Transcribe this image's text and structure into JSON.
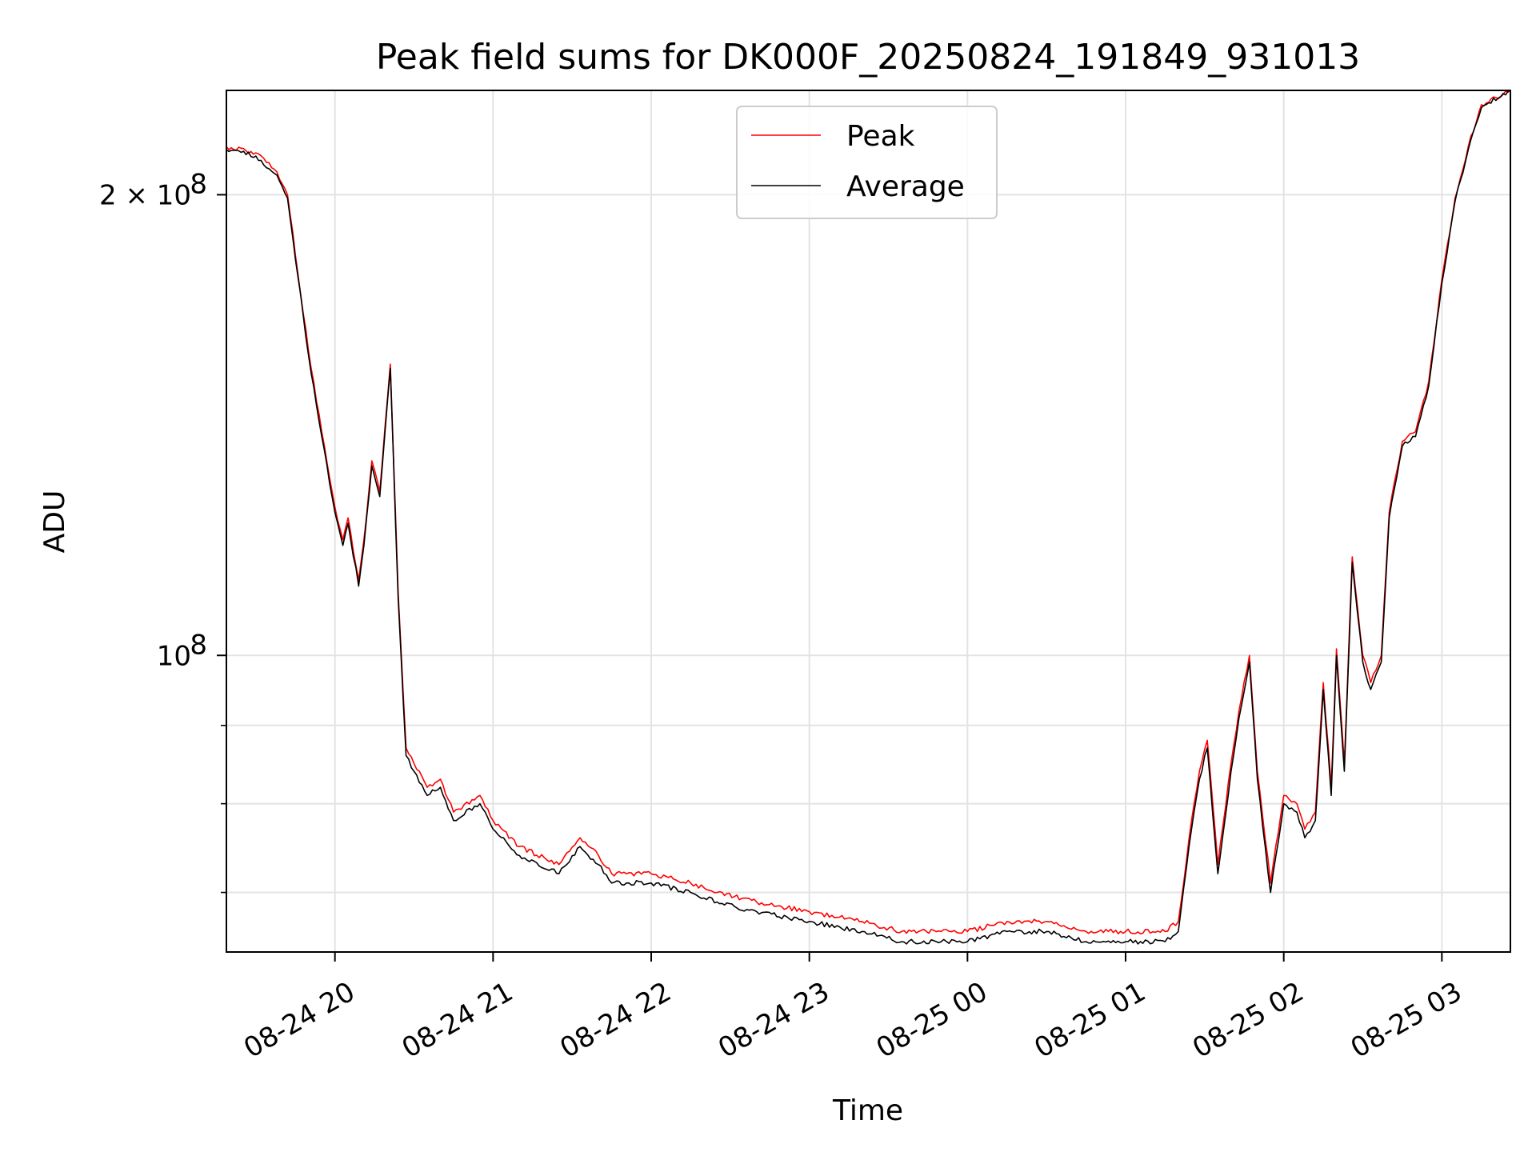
{
  "chart_data": {
    "type": "line",
    "title": "Peak field sums for DK000F_20250824_191849_931013",
    "xlabel": "Time",
    "ylabel": "ADU",
    "yscale": "log",
    "ylim": [
      64000000,
      234000000
    ],
    "xlim": [
      "2025-08-24 19:18:49",
      "2025-08-25 03:26:00"
    ],
    "x_ticks": [
      {
        "value": "2025-08-24 20:00",
        "label": "08-24 20"
      },
      {
        "value": "2025-08-24 21:00",
        "label": "08-24 21"
      },
      {
        "value": "2025-08-24 22:00",
        "label": "08-24 22"
      },
      {
        "value": "2025-08-24 23:00",
        "label": "08-24 23"
      },
      {
        "value": "2025-08-25 00:00",
        "label": "08-25 00"
      },
      {
        "value": "2025-08-25 01:00",
        "label": "08-25 01"
      },
      {
        "value": "2025-08-25 02:00",
        "label": "08-25 02"
      },
      {
        "value": "2025-08-25 03:00",
        "label": "08-25 03"
      }
    ],
    "y_ticks": [
      {
        "value": 100000000,
        "base": "10",
        "exp": "8"
      },
      {
        "value": 200000000,
        "base": "2 × 10",
        "exp": "8"
      }
    ],
    "y_minor_ticks": [
      70000000,
      80000000,
      90000000
    ],
    "grid": true,
    "legend_position": "top-center",
    "series": [
      {
        "name": "Peak",
        "color": "#ff0000",
        "x": [
          "2025-08-24 19:18:49",
          "2025-08-24 19:30",
          "2025-08-24 19:38",
          "2025-08-24 19:42",
          "2025-08-24 19:50",
          "2025-08-24 19:55",
          "2025-08-24 20:00",
          "2025-08-24 20:03",
          "2025-08-24 20:05",
          "2025-08-24 20:09",
          "2025-08-24 20:11",
          "2025-08-24 20:14",
          "2025-08-24 20:17",
          "2025-08-24 20:21",
          "2025-08-24 20:24",
          "2025-08-24 20:27",
          "2025-08-24 20:30",
          "2025-08-24 20:35",
          "2025-08-24 20:40",
          "2025-08-24 20:45",
          "2025-08-24 20:55",
          "2025-08-24 21:00",
          "2025-08-24 21:10",
          "2025-08-24 21:25",
          "2025-08-24 21:33",
          "2025-08-24 21:40",
          "2025-08-24 21:45",
          "2025-08-24 22:00",
          "2025-08-24 22:15",
          "2025-08-24 22:25",
          "2025-08-24 22:40",
          "2025-08-24 23:00",
          "2025-08-24 23:20",
          "2025-08-24 23:35",
          "2025-08-24 23:50",
          "2025-08-25 00:00",
          "2025-08-25 00:15",
          "2025-08-25 00:30",
          "2025-08-25 00:45",
          "2025-08-25 01:00",
          "2025-08-25 01:15",
          "2025-08-25 01:20",
          "2025-08-25 01:25",
          "2025-08-25 01:28",
          "2025-08-25 01:31",
          "2025-08-25 01:35",
          "2025-08-25 01:40",
          "2025-08-25 01:43",
          "2025-08-25 01:47",
          "2025-08-25 01:50",
          "2025-08-25 01:55",
          "2025-08-25 02:00",
          "2025-08-25 02:05",
          "2025-08-25 02:08",
          "2025-08-25 02:12",
          "2025-08-25 02:15",
          "2025-08-25 02:18",
          "2025-08-25 02:20",
          "2025-08-25 02:23",
          "2025-08-25 02:26",
          "2025-08-25 02:30",
          "2025-08-25 02:33",
          "2025-08-25 02:37",
          "2025-08-25 02:40",
          "2025-08-25 02:45",
          "2025-08-25 02:50",
          "2025-08-25 02:55",
          "2025-08-25 03:00",
          "2025-08-25 03:05",
          "2025-08-25 03:10",
          "2025-08-25 03:15",
          "2025-08-25 03:26"
        ],
        "y": [
          215000000,
          213000000,
          207000000,
          200000000,
          158000000,
          140000000,
          125000000,
          119000000,
          123000000,
          112000000,
          119000000,
          134000000,
          128000000,
          155000000,
          110000000,
          87000000,
          85000000,
          82000000,
          83000000,
          79000000,
          81000000,
          78000000,
          75000000,
          73000000,
          76000000,
          74000000,
          72000000,
          72000000,
          71000000,
          70000000,
          69000000,
          68000000,
          67000000,
          66000000,
          66000000,
          66000000,
          67000000,
          67000000,
          66000000,
          66000000,
          66000000,
          67000000,
          78000000,
          84000000,
          88000000,
          73000000,
          85000000,
          92000000,
          100000000,
          84000000,
          71000000,
          81000000,
          80000000,
          77000000,
          79000000,
          96000000,
          82000000,
          101000000,
          85000000,
          116000000,
          100000000,
          96000000,
          100000000,
          124000000,
          138000000,
          140000000,
          151000000,
          176000000,
          199000000,
          215000000,
          229000000,
          234000000
        ]
      },
      {
        "name": "Average",
        "color": "#000000",
        "x": [
          "2025-08-24 19:18:49",
          "2025-08-24 19:30",
          "2025-08-24 19:38",
          "2025-08-24 19:42",
          "2025-08-24 19:50",
          "2025-08-24 19:55",
          "2025-08-24 20:00",
          "2025-08-24 20:03",
          "2025-08-24 20:05",
          "2025-08-24 20:09",
          "2025-08-24 20:11",
          "2025-08-24 20:14",
          "2025-08-24 20:17",
          "2025-08-24 20:21",
          "2025-08-24 20:24",
          "2025-08-24 20:27",
          "2025-08-24 20:30",
          "2025-08-24 20:35",
          "2025-08-24 20:40",
          "2025-08-24 20:45",
          "2025-08-24 20:55",
          "2025-08-24 21:00",
          "2025-08-24 21:10",
          "2025-08-24 21:25",
          "2025-08-24 21:33",
          "2025-08-24 21:40",
          "2025-08-24 21:45",
          "2025-08-24 22:00",
          "2025-08-24 22:15",
          "2025-08-24 22:25",
          "2025-08-24 22:40",
          "2025-08-24 23:00",
          "2025-08-24 23:20",
          "2025-08-24 23:35",
          "2025-08-24 23:50",
          "2025-08-25 00:00",
          "2025-08-25 00:15",
          "2025-08-25 00:30",
          "2025-08-25 00:45",
          "2025-08-25 01:00",
          "2025-08-25 01:15",
          "2025-08-25 01:20",
          "2025-08-25 01:25",
          "2025-08-25 01:28",
          "2025-08-25 01:31",
          "2025-08-25 01:35",
          "2025-08-25 01:40",
          "2025-08-25 01:43",
          "2025-08-25 01:47",
          "2025-08-25 01:50",
          "2025-08-25 01:55",
          "2025-08-25 02:00",
          "2025-08-25 02:05",
          "2025-08-25 02:08",
          "2025-08-25 02:12",
          "2025-08-25 02:15",
          "2025-08-25 02:18",
          "2025-08-25 02:20",
          "2025-08-25 02:23",
          "2025-08-25 02:26",
          "2025-08-25 02:30",
          "2025-08-25 02:33",
          "2025-08-25 02:37",
          "2025-08-25 02:40",
          "2025-08-25 02:45",
          "2025-08-25 02:50",
          "2025-08-25 02:55",
          "2025-08-25 03:00",
          "2025-08-25 03:05",
          "2025-08-25 03:10",
          "2025-08-25 03:15",
          "2025-08-25 03:26"
        ],
        "y": [
          214000000,
          212000000,
          206000000,
          199000000,
          157000000,
          139000000,
          124000000,
          118000000,
          122000000,
          111000000,
          118000000,
          133000000,
          127000000,
          154000000,
          109000000,
          86000000,
          84000000,
          81000000,
          82000000,
          78000000,
          80000000,
          77000000,
          74000000,
          72000000,
          75000000,
          73000000,
          71000000,
          71000000,
          70000000,
          69000000,
          68000000,
          67000000,
          66000000,
          65000000,
          65000000,
          65000000,
          66000000,
          66000000,
          65000000,
          65000000,
          65000000,
          66000000,
          77000000,
          83000000,
          87000000,
          72000000,
          84000000,
          91000000,
          99000000,
          83000000,
          70000000,
          80000000,
          79000000,
          76000000,
          78000000,
          95000000,
          81000000,
          100000000,
          84000000,
          115000000,
          99000000,
          95000000,
          99000000,
          123000000,
          137000000,
          139000000,
          150000000,
          175000000,
          198000000,
          214000000,
          228000000,
          234000000
        ]
      }
    ]
  }
}
